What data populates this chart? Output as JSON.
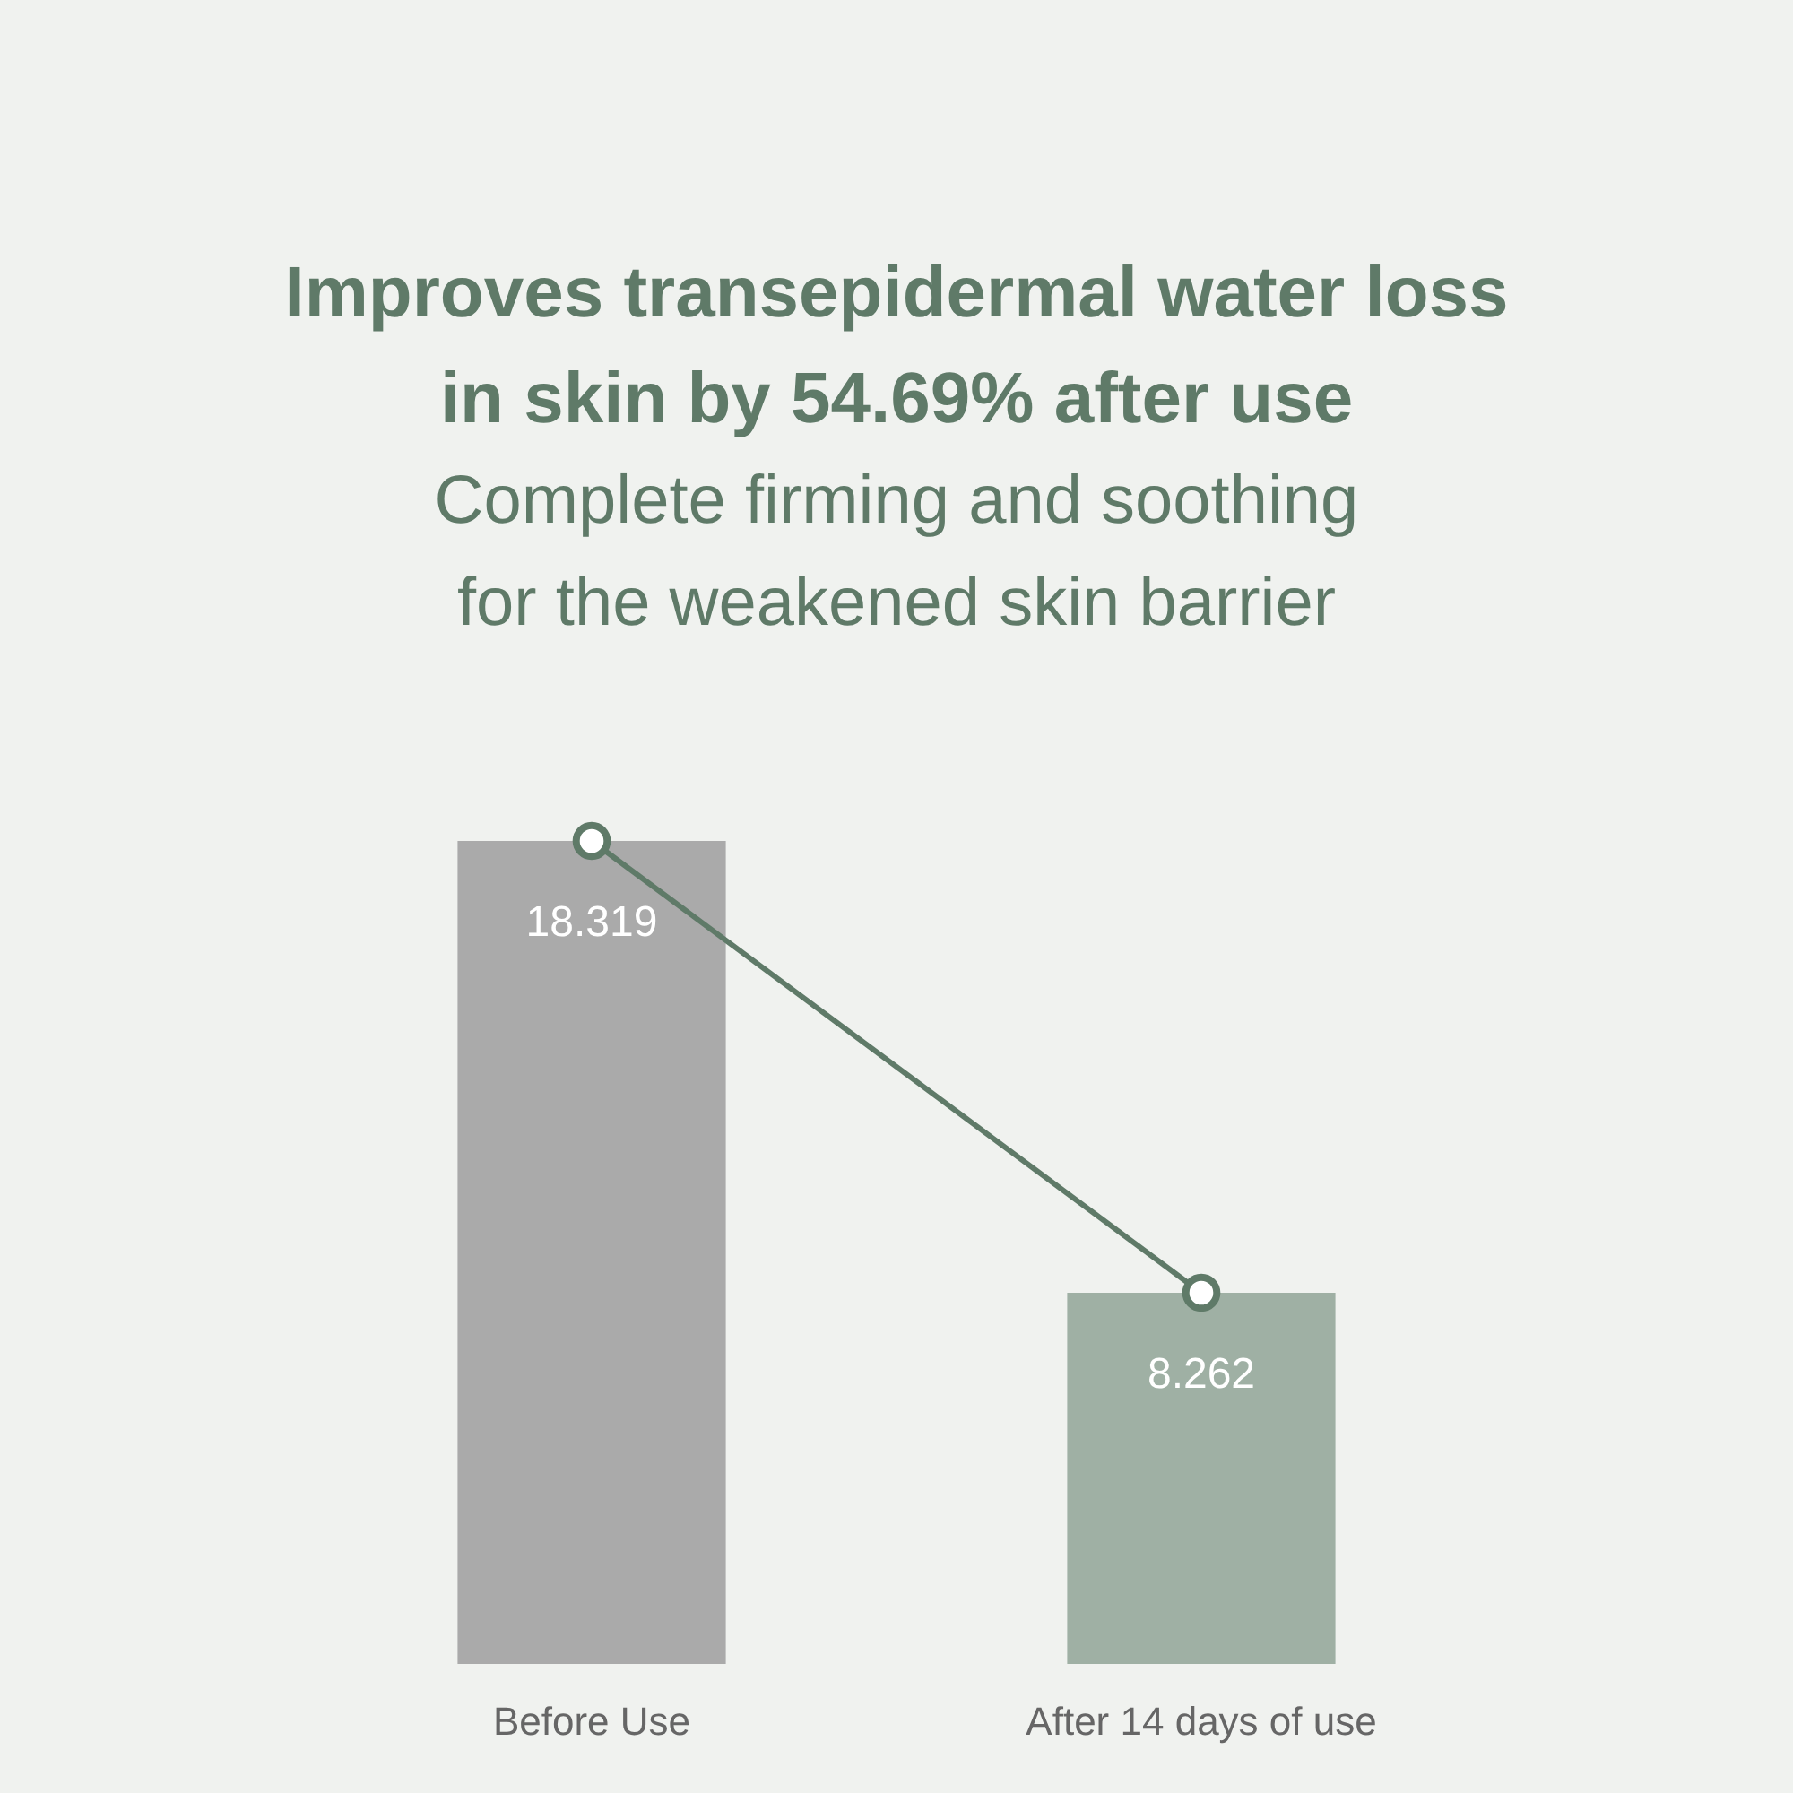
{
  "chart_data": {
    "type": "bar",
    "title": "Improves transepidermal water loss\nin skin by 54.69% after use",
    "subtitle": "Complete firming and soothing\nfor the weakened skin barrier",
    "categories": [
      "Before Use",
      "After 14 days of use"
    ],
    "series": [
      {
        "colors": [
          "#aaaaaa",
          "#9fb0a4"
        ],
        "values": [
          18.319,
          8.262
        ],
        "value_labels": [
          "18.319",
          "8.262"
        ]
      },
      {
        "type": "line",
        "color": "#5f7a68",
        "values": [
          18.319,
          8.262
        ]
      }
    ],
    "marker": "circle"
  }
}
